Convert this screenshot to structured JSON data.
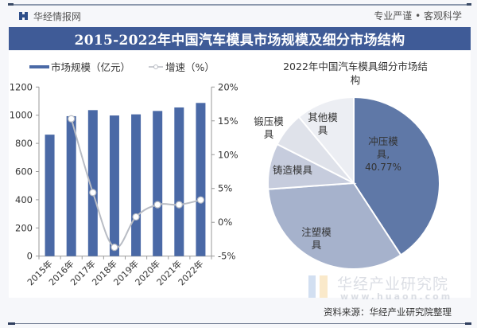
{
  "header": {
    "brand": "华经情报网",
    "slogan": "专业严谨 • 客观科学",
    "title": "2015-2022年中国汽车模具市场规模及细分市场结构"
  },
  "footer": {
    "source": "资料来源：华经产业研究院整理",
    "watermark_name": "华经产业研究院",
    "watermark_url": "www.huaon.com"
  },
  "colors": {
    "title_bar": "#3f5b97",
    "bar": "#4a69a6",
    "line": "#b8bcc4",
    "pie": [
      "#5f78a7",
      "#a6b2cc",
      "#c6ccdd",
      "#dfe2ea",
      "#eceef3"
    ]
  },
  "chart_data": [
    {
      "type": "bar",
      "title": "",
      "categories": [
        "2015年",
        "2016年",
        "2017年",
        "2018年",
        "2019年",
        "2020年",
        "2021年",
        "2022年"
      ],
      "series": [
        {
          "name": "市场规模（亿元）",
          "type": "bar",
          "axis": "left",
          "values": [
            862,
            993,
            1036,
            998,
            1006,
            1030,
            1055,
            1087
          ]
        },
        {
          "name": "增速（%）",
          "type": "line",
          "axis": "right",
          "values": [
            null,
            15.3,
            4.4,
            -3.7,
            0.8,
            2.6,
            2.6,
            3.3
          ]
        }
      ],
      "left_axis": {
        "ylim": [
          0,
          1200
        ],
        "ticks": [
          0,
          200,
          400,
          600,
          800,
          1000,
          1200
        ],
        "tick_labels": [
          "0",
          "200",
          "400",
          "600",
          "800",
          "1000",
          "1200"
        ]
      },
      "right_axis": {
        "ylim": [
          -5,
          20
        ],
        "ticks": [
          -5,
          0,
          5,
          10,
          15,
          20
        ],
        "tick_labels": [
          "-5%",
          "0%",
          "5%",
          "10%",
          "15%",
          "20%"
        ]
      },
      "legend": {
        "position": "top",
        "entries": [
          "市场规模（亿元）",
          "增速（%）"
        ]
      },
      "grid": false
    },
    {
      "type": "pie",
      "title_line1": "2022年中国汽车模具细分市场结",
      "title_line2": "构",
      "slices": [
        {
          "label_line1": "冲压模",
          "label_line2": "具,",
          "value": 40.77,
          "value_label": "40.77%"
        },
        {
          "label_line1": "注塑模",
          "label_line2": "具",
          "value": 33.1,
          "value_label": ""
        },
        {
          "label_line1": "铸造模具",
          "label_line2": "",
          "value": 8.6,
          "value_label": ""
        },
        {
          "label_line1": "锻压模",
          "label_line2": "具",
          "value": 6.5,
          "value_label": ""
        },
        {
          "label_line1": "其他模",
          "label_line2": "具",
          "value": 11.03,
          "value_label": ""
        }
      ],
      "start_angle": "12 o'clock",
      "direction": "clockwise"
    }
  ]
}
